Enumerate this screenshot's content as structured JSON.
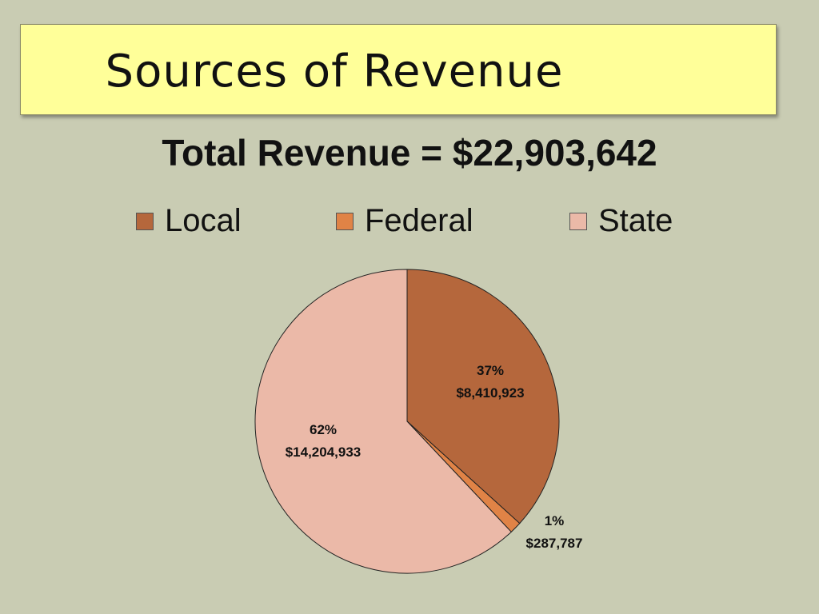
{
  "slide": {
    "title": "Sources of Revenue"
  },
  "chart_data": {
    "type": "pie",
    "title": "Total Revenue = $22,903,642",
    "legend_position": "top",
    "categories": [
      "Local",
      "Federal",
      "State"
    ],
    "values": [
      8410923,
      287787,
      14204933
    ],
    "percent_labels": [
      "37%",
      "1%",
      "62%"
    ],
    "value_labels": [
      "$8,410,923",
      "$287,787",
      "$14,204,933"
    ],
    "colors": [
      "#b5673c",
      "#e08346",
      "#ebb9a8"
    ]
  },
  "theme": {
    "background": "#c9ccb3",
    "banner": "#ffff99",
    "slice_border": "#222222"
  }
}
